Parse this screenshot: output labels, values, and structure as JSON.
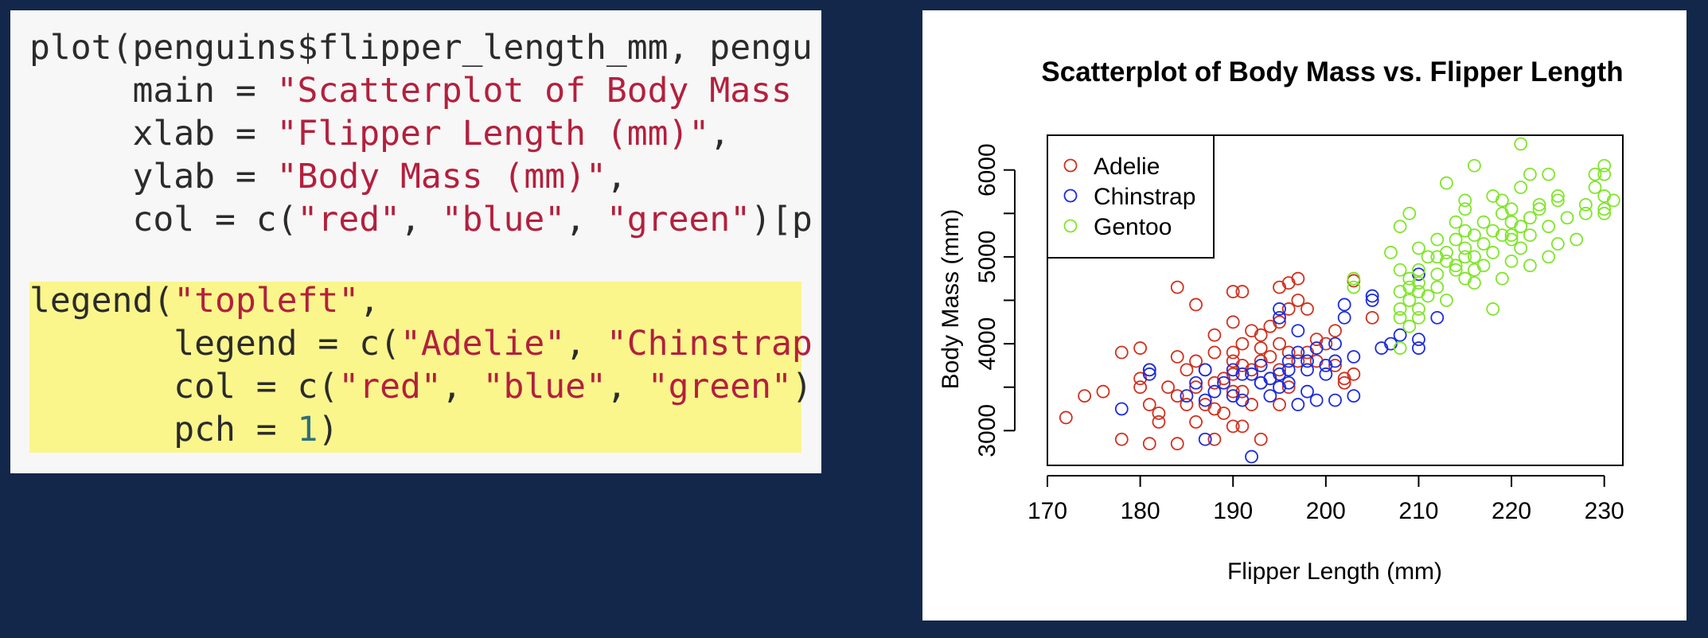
{
  "code": {
    "block1": [
      {
        "parts": [
          {
            "t": "plot(penguins$flipper_length_mm, pengu",
            "k": "plain"
          }
        ]
      },
      {
        "parts": [
          {
            "t": "     main = ",
            "k": "plain"
          },
          {
            "t": "\"Scatterplot of Body Mass",
            "k": "str"
          }
        ]
      },
      {
        "parts": [
          {
            "t": "     xlab = ",
            "k": "plain"
          },
          {
            "t": "\"Flipper Length (mm)\"",
            "k": "str"
          },
          {
            "t": ",",
            "k": "plain"
          }
        ]
      },
      {
        "parts": [
          {
            "t": "     ylab = ",
            "k": "plain"
          },
          {
            "t": "\"Body Mass (mm)\"",
            "k": "str"
          },
          {
            "t": ",",
            "k": "plain"
          }
        ]
      },
      {
        "parts": [
          {
            "t": "     col = c(",
            "k": "plain"
          },
          {
            "t": "\"red\"",
            "k": "str"
          },
          {
            "t": ", ",
            "k": "plain"
          },
          {
            "t": "\"blue\"",
            "k": "str"
          },
          {
            "t": ", ",
            "k": "plain"
          },
          {
            "t": "\"green\"",
            "k": "str"
          },
          {
            "t": ")[p",
            "k": "plain"
          }
        ]
      }
    ],
    "block2": [
      {
        "parts": [
          {
            "t": "legend(",
            "k": "plain"
          },
          {
            "t": "\"topleft\"",
            "k": "str"
          },
          {
            "t": ",",
            "k": "plain"
          }
        ]
      },
      {
        "parts": [
          {
            "t": "       legend = c(",
            "k": "plain"
          },
          {
            "t": "\"Adelie\"",
            "k": "str"
          },
          {
            "t": ", ",
            "k": "plain"
          },
          {
            "t": "\"Chinstrap",
            "k": "str"
          }
        ]
      },
      {
        "parts": [
          {
            "t": "       col = c(",
            "k": "plain"
          },
          {
            "t": "\"red\"",
            "k": "str"
          },
          {
            "t": ", ",
            "k": "plain"
          },
          {
            "t": "\"blue\"",
            "k": "str"
          },
          {
            "t": ", ",
            "k": "plain"
          },
          {
            "t": "\"green\"",
            "k": "str"
          },
          {
            "t": ")",
            "k": "plain"
          }
        ]
      },
      {
        "parts": [
          {
            "t": "       pch = ",
            "k": "plain"
          },
          {
            "t": "1",
            "k": "num"
          },
          {
            "t": ")",
            "k": "plain"
          }
        ]
      }
    ],
    "colors": {
      "plain": "#2b2b2b",
      "str": "#b3203d",
      "num": "#2e6f7e",
      "highlight": "#faf68c",
      "panel": "#f7f7f7",
      "background": "#13274a"
    }
  },
  "chart_data": {
    "type": "scatter",
    "title": "Scatterplot of Body Mass vs. Flipper Length",
    "xlabel": "Flipper Length (mm)",
    "ylabel": "Body Mass (mm)",
    "xlim": [
      170,
      232
    ],
    "ylim": [
      2600,
      6400
    ],
    "xticks": [
      170,
      180,
      190,
      200,
      210,
      220,
      230
    ],
    "yticks": [
      3000,
      4000,
      5000,
      6000
    ],
    "grid": false,
    "legend_position": "top-left",
    "marker": "open-circle",
    "series": [
      {
        "name": "Adelie",
        "color": "#d1301d",
        "points": [
          [
            172,
            3150
          ],
          [
            174,
            3400
          ],
          [
            176,
            3450
          ],
          [
            178,
            3900
          ],
          [
            178,
            2900
          ],
          [
            180,
            3950
          ],
          [
            180,
            3600
          ],
          [
            180,
            3500
          ],
          [
            181,
            3700
          ],
          [
            181,
            2850
          ],
          [
            181,
            3300
          ],
          [
            182,
            3200
          ],
          [
            182,
            3100
          ],
          [
            183,
            3500
          ],
          [
            184,
            3400
          ],
          [
            184,
            4650
          ],
          [
            184,
            3850
          ],
          [
            184,
            2850
          ],
          [
            185,
            3300
          ],
          [
            185,
            3700
          ],
          [
            186,
            3800
          ],
          [
            186,
            3500
          ],
          [
            186,
            3100
          ],
          [
            186,
            4450
          ],
          [
            187,
            3700
          ],
          [
            187,
            3300
          ],
          [
            188,
            3550
          ],
          [
            188,
            3900
          ],
          [
            188,
            4100
          ],
          [
            188,
            2900
          ],
          [
            188,
            3250
          ],
          [
            189,
            3600
          ],
          [
            189,
            3200
          ],
          [
            190,
            3800
          ],
          [
            190,
            3650
          ],
          [
            190,
            4250
          ],
          [
            190,
            4600
          ],
          [
            190,
            3050
          ],
          [
            190,
            3450
          ],
          [
            190,
            3900
          ],
          [
            191,
            4000
          ],
          [
            191,
            3450
          ],
          [
            191,
            3750
          ],
          [
            191,
            4600
          ],
          [
            191,
            3050
          ],
          [
            192,
            4150
          ],
          [
            192,
            3700
          ],
          [
            192,
            3300
          ],
          [
            193,
            3950
          ],
          [
            193,
            3800
          ],
          [
            193,
            3550
          ],
          [
            193,
            4100
          ],
          [
            193,
            2900
          ],
          [
            194,
            4200
          ],
          [
            194,
            3850
          ],
          [
            194,
            3600
          ],
          [
            195,
            4250
          ],
          [
            195,
            3700
          ],
          [
            195,
            4000
          ],
          [
            195,
            3300
          ],
          [
            195,
            4650
          ],
          [
            196,
            4400
          ],
          [
            196,
            3900
          ],
          [
            196,
            4700
          ],
          [
            196,
            3500
          ],
          [
            197,
            4500
          ],
          [
            197,
            3800
          ],
          [
            197,
            4750
          ],
          [
            198,
            4400
          ],
          [
            198,
            3900
          ],
          [
            199,
            4050
          ],
          [
            199,
            3800
          ],
          [
            200,
            4000
          ],
          [
            201,
            4150
          ],
          [
            201,
            3750
          ],
          [
            202,
            3600
          ],
          [
            202,
            3550
          ],
          [
            203,
            4725
          ],
          [
            203,
            3650
          ],
          [
            205,
            4300
          ]
        ]
      },
      {
        "name": "Chinstrap",
        "color": "#1b2be0",
        "points": [
          [
            178,
            3250
          ],
          [
            181,
            3650
          ],
          [
            181,
            3700
          ],
          [
            185,
            3400
          ],
          [
            186,
            3550
          ],
          [
            187,
            3350
          ],
          [
            187,
            2900
          ],
          [
            187,
            3700
          ],
          [
            188,
            3450
          ],
          [
            189,
            3550
          ],
          [
            190,
            3400
          ],
          [
            190,
            3700
          ],
          [
            191,
            3650
          ],
          [
            191,
            3350
          ],
          [
            192,
            3650
          ],
          [
            192,
            2700
          ],
          [
            193,
            3750
          ],
          [
            193,
            3550
          ],
          [
            194,
            3600
          ],
          [
            194,
            3400
          ],
          [
            195,
            3650
          ],
          [
            195,
            3500
          ],
          [
            195,
            4400
          ],
          [
            195,
            4300
          ],
          [
            196,
            3700
          ],
          [
            196,
            3550
          ],
          [
            196,
            3800
          ],
          [
            197,
            3900
          ],
          [
            197,
            3300
          ],
          [
            197,
            4150
          ],
          [
            198,
            3700
          ],
          [
            198,
            3450
          ],
          [
            198,
            3800
          ],
          [
            199,
            3950
          ],
          [
            199,
            3350
          ],
          [
            200,
            3650
          ],
          [
            200,
            3750
          ],
          [
            201,
            3800
          ],
          [
            201,
            4000
          ],
          [
            201,
            3350
          ],
          [
            202,
            4450
          ],
          [
            202,
            4300
          ],
          [
            203,
            3850
          ],
          [
            203,
            3400
          ],
          [
            205,
            4550
          ],
          [
            205,
            4500
          ],
          [
            206,
            3950
          ],
          [
            207,
            4000
          ],
          [
            208,
            4100
          ],
          [
            210,
            3950
          ],
          [
            210,
            4050
          ],
          [
            210,
            4800
          ],
          [
            212,
            4300
          ]
        ]
      },
      {
        "name": "Gentoo",
        "color": "#7fe629",
        "points": [
          [
            203,
            4650
          ],
          [
            203,
            4750
          ],
          [
            207,
            5050
          ],
          [
            208,
            4600
          ],
          [
            208,
            4400
          ],
          [
            208,
            3950
          ],
          [
            208,
            5350
          ],
          [
            208,
            4300
          ],
          [
            208,
            4850
          ],
          [
            209,
            5500
          ],
          [
            209,
            4650
          ],
          [
            209,
            4750
          ],
          [
            209,
            4500
          ],
          [
            209,
            4200
          ],
          [
            210,
            4400
          ],
          [
            210,
            4700
          ],
          [
            210,
            4850
          ],
          [
            210,
            5100
          ],
          [
            210,
            4600
          ],
          [
            210,
            4300
          ],
          [
            211,
            4550
          ],
          [
            211,
            5000
          ],
          [
            212,
            5000
          ],
          [
            212,
            4800
          ],
          [
            212,
            5200
          ],
          [
            212,
            4650
          ],
          [
            213,
            5050
          ],
          [
            213,
            4950
          ],
          [
            213,
            5850
          ],
          [
            213,
            4500
          ],
          [
            214,
            5200
          ],
          [
            214,
            4850
          ],
          [
            214,
            5400
          ],
          [
            214,
            4900
          ],
          [
            215,
            5000
          ],
          [
            215,
            4750
          ],
          [
            215,
            5100
          ],
          [
            215,
            5300
          ],
          [
            215,
            5550
          ],
          [
            215,
            5650
          ],
          [
            216,
            5000
          ],
          [
            216,
            4700
          ],
          [
            216,
            5250
          ],
          [
            216,
            6050
          ],
          [
            216,
            4850
          ],
          [
            217,
            4900
          ],
          [
            217,
            5150
          ],
          [
            217,
            5400
          ],
          [
            218,
            5700
          ],
          [
            218,
            5050
          ],
          [
            218,
            5300
          ],
          [
            218,
            4400
          ],
          [
            219,
            5250
          ],
          [
            219,
            5500
          ],
          [
            219,
            4750
          ],
          [
            219,
            5650
          ],
          [
            220,
            5550
          ],
          [
            220,
            5400
          ],
          [
            220,
            5250
          ],
          [
            220,
            4950
          ],
          [
            220,
            5200
          ],
          [
            221,
            5350
          ],
          [
            221,
            5800
          ],
          [
            221,
            5100
          ],
          [
            221,
            6300
          ],
          [
            222,
            5950
          ],
          [
            222,
            5450
          ],
          [
            222,
            5250
          ],
          [
            223,
            5550
          ],
          [
            223,
            5600
          ],
          [
            224,
            5350
          ],
          [
            224,
            5950
          ],
          [
            225,
            5650
          ],
          [
            225,
            5700
          ],
          [
            226,
            5450
          ],
          [
            227,
            5200
          ],
          [
            228,
            5600
          ],
          [
            228,
            5500
          ],
          [
            229,
            5950
          ],
          [
            229,
            5800
          ],
          [
            230,
            5700
          ],
          [
            230,
            5950
          ],
          [
            230,
            5550
          ],
          [
            230,
            6050
          ],
          [
            231,
            5650
          ],
          [
            230,
            5500
          ],
          [
            224,
            5000
          ],
          [
            222,
            4900
          ],
          [
            225,
            5150
          ]
        ]
      }
    ]
  }
}
